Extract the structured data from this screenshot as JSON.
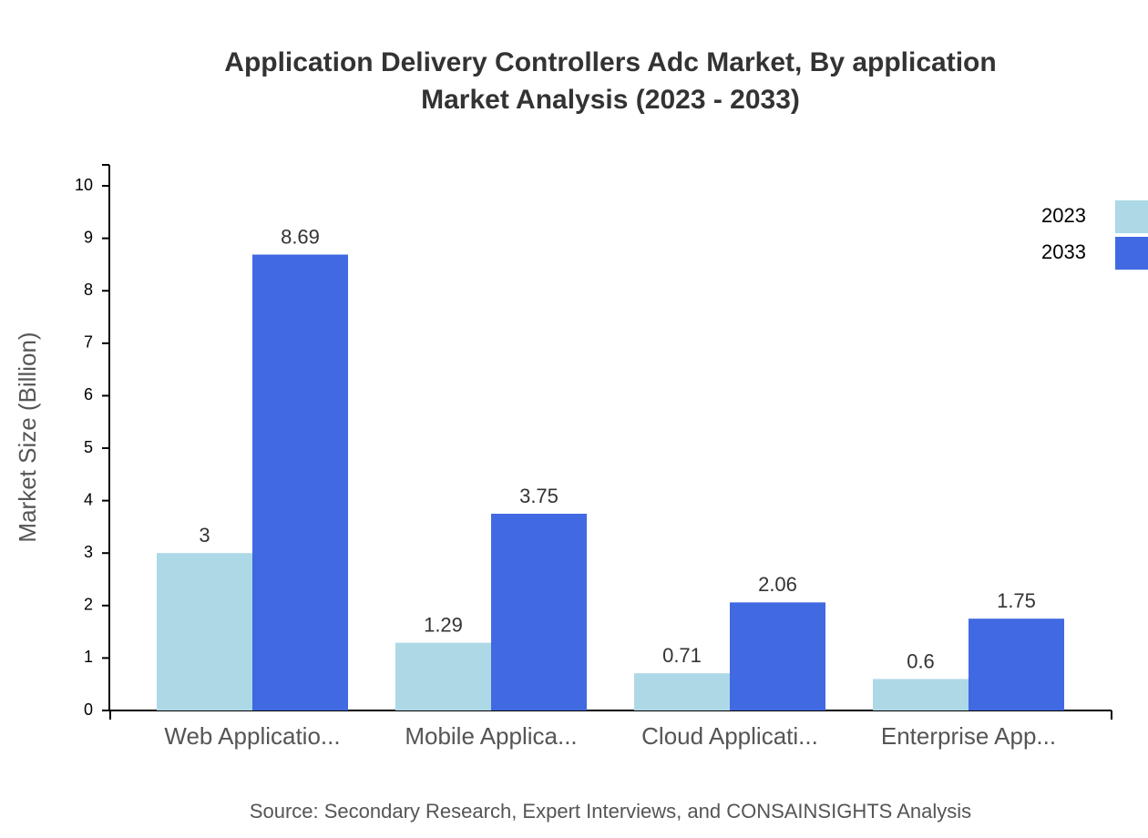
{
  "chart_data": {
    "type": "bar",
    "title": "Application Delivery Controllers Adc Market, By application Market Analysis (2023 - 2033)",
    "y_label": "Market Size (Billion)",
    "source": "Source: Secondary Research, Expert Interviews, and CONSAINSIGHTS Analysis",
    "categories": [
      "Web Applicatio...",
      "Mobile Applica...",
      "Cloud Applicati...",
      "Enterprise App..."
    ],
    "series": [
      {
        "name": "2023",
        "color": "#add8e6",
        "values": [
          3,
          1.29,
          0.71,
          0.6
        ]
      },
      {
        "name": "2033",
        "color": "#4169e1",
        "values": [
          8.69,
          3.75,
          2.06,
          1.75
        ]
      }
    ],
    "ylim": [
      0,
      10.4
    ],
    "yticks": [
      0,
      1,
      2,
      3,
      4,
      5,
      6,
      7,
      8,
      9,
      10
    ],
    "legend": "top-right"
  }
}
